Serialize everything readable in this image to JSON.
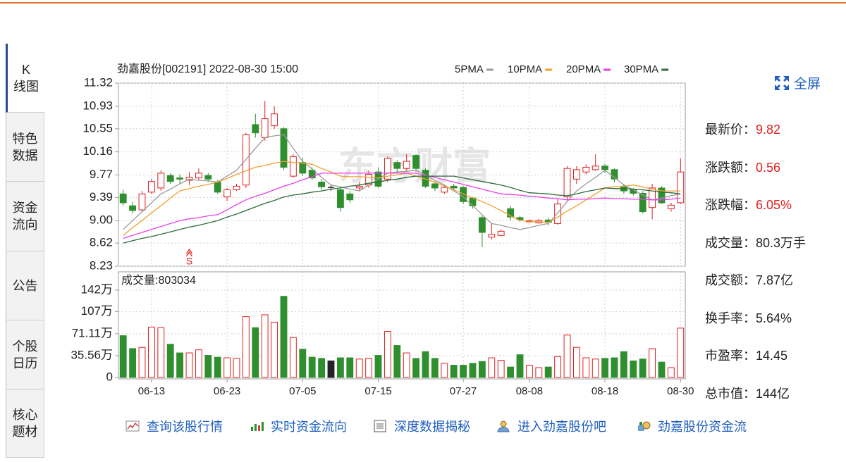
{
  "tabs": [
    "K\n线图",
    "特色\n数据",
    "资金\n流向",
    "公告",
    "个股\n日历",
    "核心\n题材"
  ],
  "fullscreen": "全屏",
  "stats": [
    {
      "label": "最新价：",
      "value": "9.82",
      "color": "#e02020"
    },
    {
      "label": "涨跌额：",
      "value": "0.56",
      "color": "#e02020"
    },
    {
      "label": "涨跌幅：",
      "value": "6.05%",
      "color": "#e02020"
    },
    {
      "label": "成交量：",
      "value": "80.3万手",
      "color": "#222222"
    },
    {
      "label": "成交额：",
      "value": "7.87亿",
      "color": "#222222"
    },
    {
      "label": "换手率：",
      "value": "5.64%",
      "color": "#222222"
    },
    {
      "label": "市盈率：",
      "value": "14.45",
      "color": "#222222"
    },
    {
      "label": "总市值：",
      "value": "144亿",
      "color": "#222222"
    }
  ],
  "links": [
    "查询该股行情",
    "实时资金流向",
    "深度数据揭秘",
    "进入劲嘉股份吧",
    "劲嘉股份资金流"
  ],
  "chart_data": {
    "type": "candlestick",
    "title": "劲嘉股份[002191] 2022-08-30 15:00",
    "watermark": "东方财富",
    "signal": "S",
    "up_color": "#e02020",
    "down_color": "#2f8f2f",
    "doji_color": "#222222",
    "grid": true,
    "categories": [
      null,
      null,
      null,
      "06-13",
      null,
      null,
      null,
      null,
      null,
      null,
      null,
      "06-23",
      null,
      null,
      null,
      null,
      null,
      null,
      null,
      "07-05",
      null,
      null,
      null,
      null,
      null,
      null,
      null,
      "07-15",
      null,
      null,
      null,
      null,
      null,
      null,
      null,
      null,
      "07-27",
      null,
      null,
      null,
      null,
      null,
      null,
      "08-08",
      null,
      null,
      null,
      null,
      null,
      null,
      null,
      "08-18",
      null,
      null,
      null,
      null,
      null,
      null,
      null,
      "08-30"
    ],
    "open": [
      9.45,
      9.25,
      9.18,
      9.48,
      9.55,
      9.76,
      9.72,
      9.68,
      9.72,
      9.76,
      9.65,
      9.4,
      9.52,
      9.6,
      10.62,
      10.4,
      10.6,
      10.55,
      9.75,
      9.98,
      9.85,
      9.65,
      9.56,
      9.52,
      9.45,
      9.55,
      9.6,
      9.82,
      9.7,
      9.98,
      9.88,
      10.1,
      9.85,
      9.62,
      9.48,
      9.58,
      9.56,
      9.38,
      9.05,
      8.72,
      8.75,
      9.2,
      9.05,
      8.98,
      8.96,
      9.01,
      8.95,
      9.4,
      9.7,
      9.82,
      9.86,
      9.92,
      9.86,
      9.58,
      9.52,
      9.46,
      9.22,
      9.55,
      9.2,
      9.3
    ],
    "high": [
      9.52,
      9.32,
      9.5,
      9.7,
      9.85,
      9.8,
      9.78,
      9.82,
      9.88,
      9.8,
      9.68,
      9.55,
      9.62,
      10.48,
      10.8,
      11.02,
      10.93,
      10.58,
      10.12,
      10.05,
      9.9,
      9.7,
      9.6,
      9.55,
      9.5,
      9.65,
      9.85,
      9.9,
      10.08,
      10.02,
      10.12,
      10.12,
      9.88,
      9.66,
      9.6,
      9.62,
      9.58,
      9.4,
      9.08,
      8.95,
      8.85,
      9.25,
      9.08,
      9.02,
      9.03,
      9.05,
      9.38,
      9.92,
      9.92,
      9.95,
      10.12,
      9.96,
      9.88,
      9.62,
      9.55,
      9.5,
      9.62,
      9.58,
      9.3,
      10.05
    ],
    "low": [
      9.25,
      9.12,
      9.15,
      9.45,
      9.5,
      9.62,
      9.62,
      9.6,
      9.68,
      9.65,
      9.45,
      9.33,
      9.5,
      9.55,
      10.4,
      10.35,
      10.55,
      9.85,
      9.72,
      9.75,
      9.68,
      9.52,
      9.5,
      9.15,
      9.3,
      9.5,
      9.55,
      9.55,
      9.65,
      9.8,
      9.85,
      9.82,
      9.55,
      9.5,
      9.45,
      9.52,
      9.28,
      9.2,
      8.55,
      8.68,
      8.73,
      9.0,
      8.98,
      8.96,
      8.95,
      8.92,
      8.93,
      9.35,
      9.62,
      9.78,
      9.84,
      9.8,
      9.65,
      9.45,
      9.42,
      9.12,
      9.02,
      9.28,
      9.15,
      9.28
    ],
    "close": [
      9.3,
      9.17,
      9.45,
      9.66,
      9.8,
      9.66,
      9.7,
      9.73,
      9.8,
      9.7,
      9.48,
      9.52,
      9.58,
      10.45,
      10.48,
      10.72,
      10.8,
      9.9,
      10.08,
      9.8,
      9.72,
      9.57,
      9.56,
      9.22,
      9.35,
      9.58,
      9.78,
      9.58,
      10.05,
      9.88,
      10.0,
      9.88,
      9.58,
      9.55,
      9.56,
      9.55,
      9.32,
      9.25,
      8.8,
      8.77,
      8.82,
      9.06,
      9.02,
      9.0,
      9.0,
      8.97,
      9.28,
      9.88,
      9.86,
      9.9,
      9.92,
      9.86,
      9.7,
      9.5,
      9.46,
      9.15,
      9.55,
      9.3,
      9.26,
      9.82
    ],
    "series": [
      {
        "name": "5PMA",
        "color": "#9a9a9a",
        "values": [
          8.85,
          9.0,
          9.15,
          9.3,
          9.45,
          9.53,
          9.62,
          9.7,
          9.68,
          9.67,
          9.65,
          9.75,
          9.85,
          10.03,
          10.22,
          10.4,
          10.43,
          10.45,
          10.22,
          10.0,
          9.87,
          9.73,
          9.6,
          9.57,
          9.53,
          9.5,
          9.6,
          9.7,
          9.8,
          9.82,
          9.83,
          9.85,
          9.77,
          9.68,
          9.6,
          9.5,
          9.4,
          9.25,
          9.1,
          8.95,
          8.92,
          8.88,
          8.85,
          8.88,
          8.92,
          8.95,
          9.13,
          9.32,
          9.5,
          9.62,
          9.73,
          9.85,
          9.73,
          9.6,
          9.52,
          9.43,
          9.35,
          9.38,
          9.42,
          9.45
        ]
      },
      {
        "name": "10PMA",
        "color": "#f0a030",
        "values": [
          8.75,
          8.88,
          9.0,
          9.13,
          9.25,
          9.38,
          9.5,
          9.54,
          9.58,
          9.61,
          9.65,
          9.71,
          9.78,
          9.84,
          9.9,
          9.93,
          9.97,
          10.0,
          9.98,
          9.97,
          9.95,
          9.88,
          9.82,
          9.75,
          9.74,
          9.74,
          9.73,
          9.72,
          9.75,
          9.77,
          9.8,
          9.75,
          9.7,
          9.65,
          9.58,
          9.52,
          9.45,
          9.38,
          9.32,
          9.25,
          9.17,
          9.08,
          9.0,
          8.99,
          8.98,
          8.97,
          9.06,
          9.16,
          9.25,
          9.35,
          9.45,
          9.55,
          9.57,
          9.58,
          9.6,
          9.57,
          9.53,
          9.5,
          9.5,
          9.5
        ]
      },
      {
        "name": "20PMA",
        "color": "#e83ee8",
        "values": [
          8.7,
          8.75,
          8.8,
          8.85,
          8.9,
          8.95,
          9.0,
          9.03,
          9.05,
          9.08,
          9.1,
          9.18,
          9.27,
          9.35,
          9.41,
          9.46,
          9.52,
          9.58,
          9.63,
          9.69,
          9.74,
          9.8,
          9.8,
          9.8,
          9.8,
          9.8,
          9.8,
          9.8,
          9.8,
          9.8,
          9.8,
          9.8,
          9.76,
          9.73,
          9.69,
          9.65,
          9.61,
          9.57,
          9.53,
          9.49,
          9.45,
          9.44,
          9.43,
          9.41,
          9.4,
          9.38,
          9.37,
          9.35,
          9.36,
          9.36,
          9.37,
          9.38,
          9.37,
          9.37,
          9.36,
          9.36,
          9.35,
          9.35,
          9.36,
          9.38
        ]
      },
      {
        "name": "30PMA",
        "color": "#2d6b3a",
        "values": [
          8.62,
          8.66,
          8.7,
          8.73,
          8.77,
          8.81,
          8.85,
          8.89,
          8.92,
          8.96,
          9.0,
          9.06,
          9.11,
          9.17,
          9.23,
          9.29,
          9.34,
          9.4,
          9.43,
          9.45,
          9.48,
          9.5,
          9.53,
          9.55,
          9.58,
          9.6,
          9.63,
          9.65,
          9.68,
          9.7,
          9.73,
          9.75,
          9.75,
          9.75,
          9.75,
          9.75,
          9.72,
          9.69,
          9.66,
          9.63,
          9.6,
          9.56,
          9.51,
          9.47,
          9.46,
          9.45,
          9.43,
          9.42,
          9.45,
          9.49,
          9.52,
          9.55,
          9.54,
          9.54,
          9.53,
          9.52,
          9.5,
          9.48,
          9.47,
          9.45
        ]
      }
    ],
    "ylim": [
      8.23,
      11.32
    ],
    "yticks": [
      8.23,
      8.62,
      {
        "value": 9.0,
        "label": "9.00"
      },
      9.39,
      9.77,
      10.16,
      10.55,
      10.93,
      11.32
    ],
    "volume": {
      "label": "成交量:803034",
      "values": [
        680000,
        470000,
        490000,
        820000,
        810000,
        540000,
        400000,
        400000,
        450000,
        360000,
        330000,
        320000,
        310000,
        990000,
        810000,
        1020000,
        900000,
        1320000,
        650000,
        460000,
        330000,
        310000,
        270000,
        320000,
        320000,
        300000,
        310000,
        360000,
        750000,
        520000,
        400000,
        310000,
        420000,
        310000,
        230000,
        200000,
        200000,
        230000,
        260000,
        320000,
        280000,
        170000,
        370000,
        200000,
        160000,
        170000,
        340000,
        690000,
        490000,
        320000,
        300000,
        310000,
        320000,
        420000,
        270000,
        300000,
        470000,
        250000,
        160000,
        803034
      ],
      "ylim": [
        0,
        1420000
      ],
      "yticks": [
        0,
        {
          "value": 355600,
          "label": "35.56万"
        },
        {
          "value": 711100,
          "label": "71.11万"
        },
        {
          "value": 1070000,
          "label": "107万"
        },
        {
          "value": 1420000,
          "label": "142万"
        }
      ]
    }
  }
}
